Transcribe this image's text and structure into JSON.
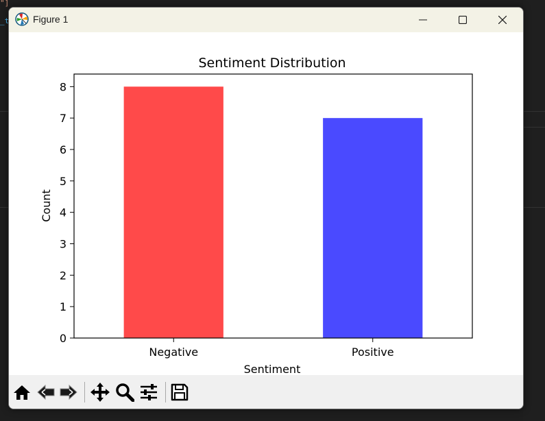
{
  "window": {
    "title": "Figure 1"
  },
  "toolbar": {
    "buttons": [
      {
        "name": "home-icon"
      },
      {
        "name": "back-arrow-icon"
      },
      {
        "name": "forward-arrow-icon"
      },
      {
        "name": "pan-icon"
      },
      {
        "name": "zoom-icon"
      },
      {
        "name": "configure-subplots-icon"
      },
      {
        "name": "save-icon"
      }
    ]
  },
  "chart_data": {
    "type": "bar",
    "title": "Sentiment Distribution",
    "xlabel": "Sentiment",
    "ylabel": "Count",
    "categories": [
      "Negative",
      "Positive"
    ],
    "values": [
      8,
      7
    ],
    "colors": [
      "#ff4a4a",
      "#4a4aff"
    ],
    "ylim": [
      0,
      8.4
    ],
    "yticks": [
      0,
      1,
      2,
      3,
      4,
      5,
      6,
      7,
      8
    ],
    "grid": false
  }
}
